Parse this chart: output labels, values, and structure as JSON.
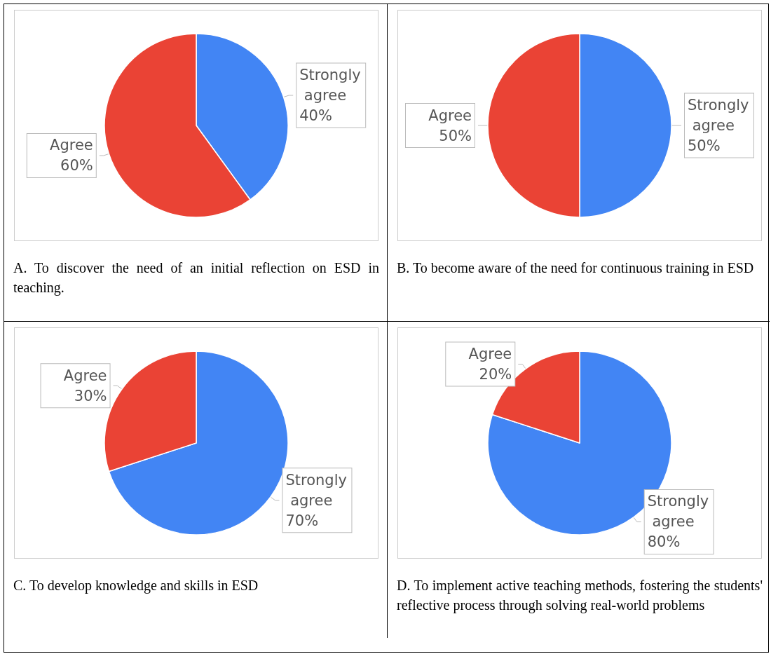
{
  "chart_data": [
    {
      "type": "pie",
      "categories": [
        "Strongly agree",
        "Agree"
      ],
      "values": [
        40,
        60
      ],
      "colors": [
        "#4285f4",
        "#ea4335"
      ],
      "value_labels": [
        "40%",
        "60%"
      ],
      "legend": false,
      "annotations": [
        "A. To discover the need of an initial reflection on ESD in teaching."
      ]
    },
    {
      "type": "pie",
      "categories": [
        "Strongly agree",
        "Agree"
      ],
      "values": [
        50,
        50
      ],
      "colors": [
        "#4285f4",
        "#ea4335"
      ],
      "value_labels": [
        "50%",
        "50%"
      ],
      "legend": false,
      "annotations": [
        "B. To become aware of the need for continuous training in ESD"
      ]
    },
    {
      "type": "pie",
      "categories": [
        "Strongly agree",
        "Agree"
      ],
      "values": [
        70,
        30
      ],
      "colors": [
        "#4285f4",
        "#ea4335"
      ],
      "value_labels": [
        "70%",
        "30%"
      ],
      "legend": false,
      "annotations": [
        "C. To develop knowledge and skills in ESD"
      ]
    },
    {
      "type": "pie",
      "categories": [
        "Strongly agree",
        "Agree"
      ],
      "values": [
        80,
        20
      ],
      "colors": [
        "#4285f4",
        "#ea4335"
      ],
      "value_labels": [
        "80%",
        "20%"
      ],
      "legend": false,
      "annotations": [
        "D. To implement active teaching methods, fostering the students' reflective process through solving real-world problems"
      ]
    }
  ]
}
